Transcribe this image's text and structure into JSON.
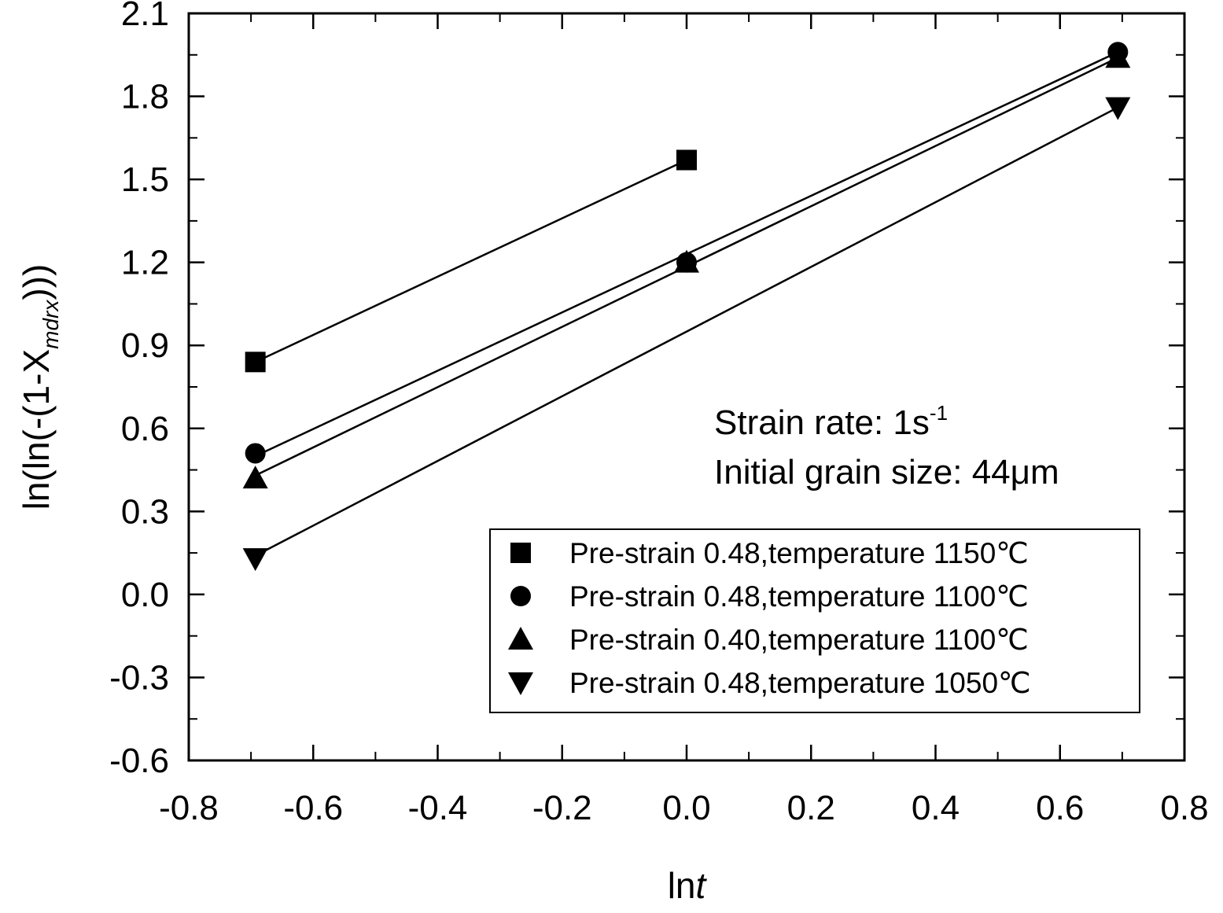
{
  "chart_data": {
    "type": "scatter",
    "xlabel_main": "ln",
    "xlabel_italic": "t",
    "ylabel_main": "ln(ln(-(1-X",
    "ylabel_sub": "mdrx",
    "ylabel_tail": ")))",
    "xlim": [
      -0.8,
      0.8
    ],
    "ylim": [
      -0.6,
      2.1
    ],
    "xticks": [
      -0.8,
      -0.6,
      -0.4,
      -0.2,
      0.0,
      0.2,
      0.4,
      0.6,
      0.8
    ],
    "yticks": [
      -0.6,
      -0.3,
      0.0,
      0.3,
      0.6,
      0.9,
      1.2,
      1.5,
      1.8,
      2.1
    ],
    "xtick_labels": [
      "-0.8",
      "-0.6",
      "-0.4",
      "-0.2",
      "0.0",
      "0.2",
      "0.4",
      "0.6",
      "0.8"
    ],
    "ytick_labels": [
      "-0.6",
      "-0.3",
      "0.0",
      "0.3",
      "0.6",
      "0.9",
      "1.2",
      "1.5",
      "1.8",
      "2.1"
    ],
    "grid": false,
    "legend_position": "bottom-right",
    "annotation_line1_main": "Strain rate: 1s",
    "annotation_line1_sup": "-1",
    "annotation_line2": "Initial grain size: 44μm",
    "series": [
      {
        "name": "Pre-strain 0.48,temperature 1150℃",
        "marker": "square",
        "x": [
          -0.693,
          0.0
        ],
        "y": [
          0.84,
          1.57
        ],
        "fit": [
          [
            -0.693,
            0.84
          ],
          [
            0.0,
            1.57
          ]
        ]
      },
      {
        "name": "Pre-strain 0.48,temperature 1100℃",
        "marker": "circle",
        "x": [
          -0.693,
          0.0,
          0.693
        ],
        "y": [
          0.51,
          1.2,
          1.96
        ],
        "fit": [
          [
            -0.693,
            0.5
          ],
          [
            0.693,
            1.96
          ]
        ]
      },
      {
        "name": "Pre-strain 0.40,temperature 1100℃",
        "marker": "triangle-up",
        "x": [
          -0.693,
          0.0,
          0.693
        ],
        "y": [
          0.42,
          1.2,
          1.94
        ],
        "fit": [
          [
            -0.693,
            0.43
          ],
          [
            0.693,
            1.94
          ]
        ]
      },
      {
        "name": "Pre-strain 0.48,temperature 1050℃",
        "marker": "triangle-down",
        "x": [
          -0.693,
          0.693
        ],
        "y": [
          0.13,
          1.76
        ],
        "fit": [
          [
            -0.693,
            0.14
          ],
          [
            0.693,
            1.76
          ]
        ]
      }
    ]
  }
}
